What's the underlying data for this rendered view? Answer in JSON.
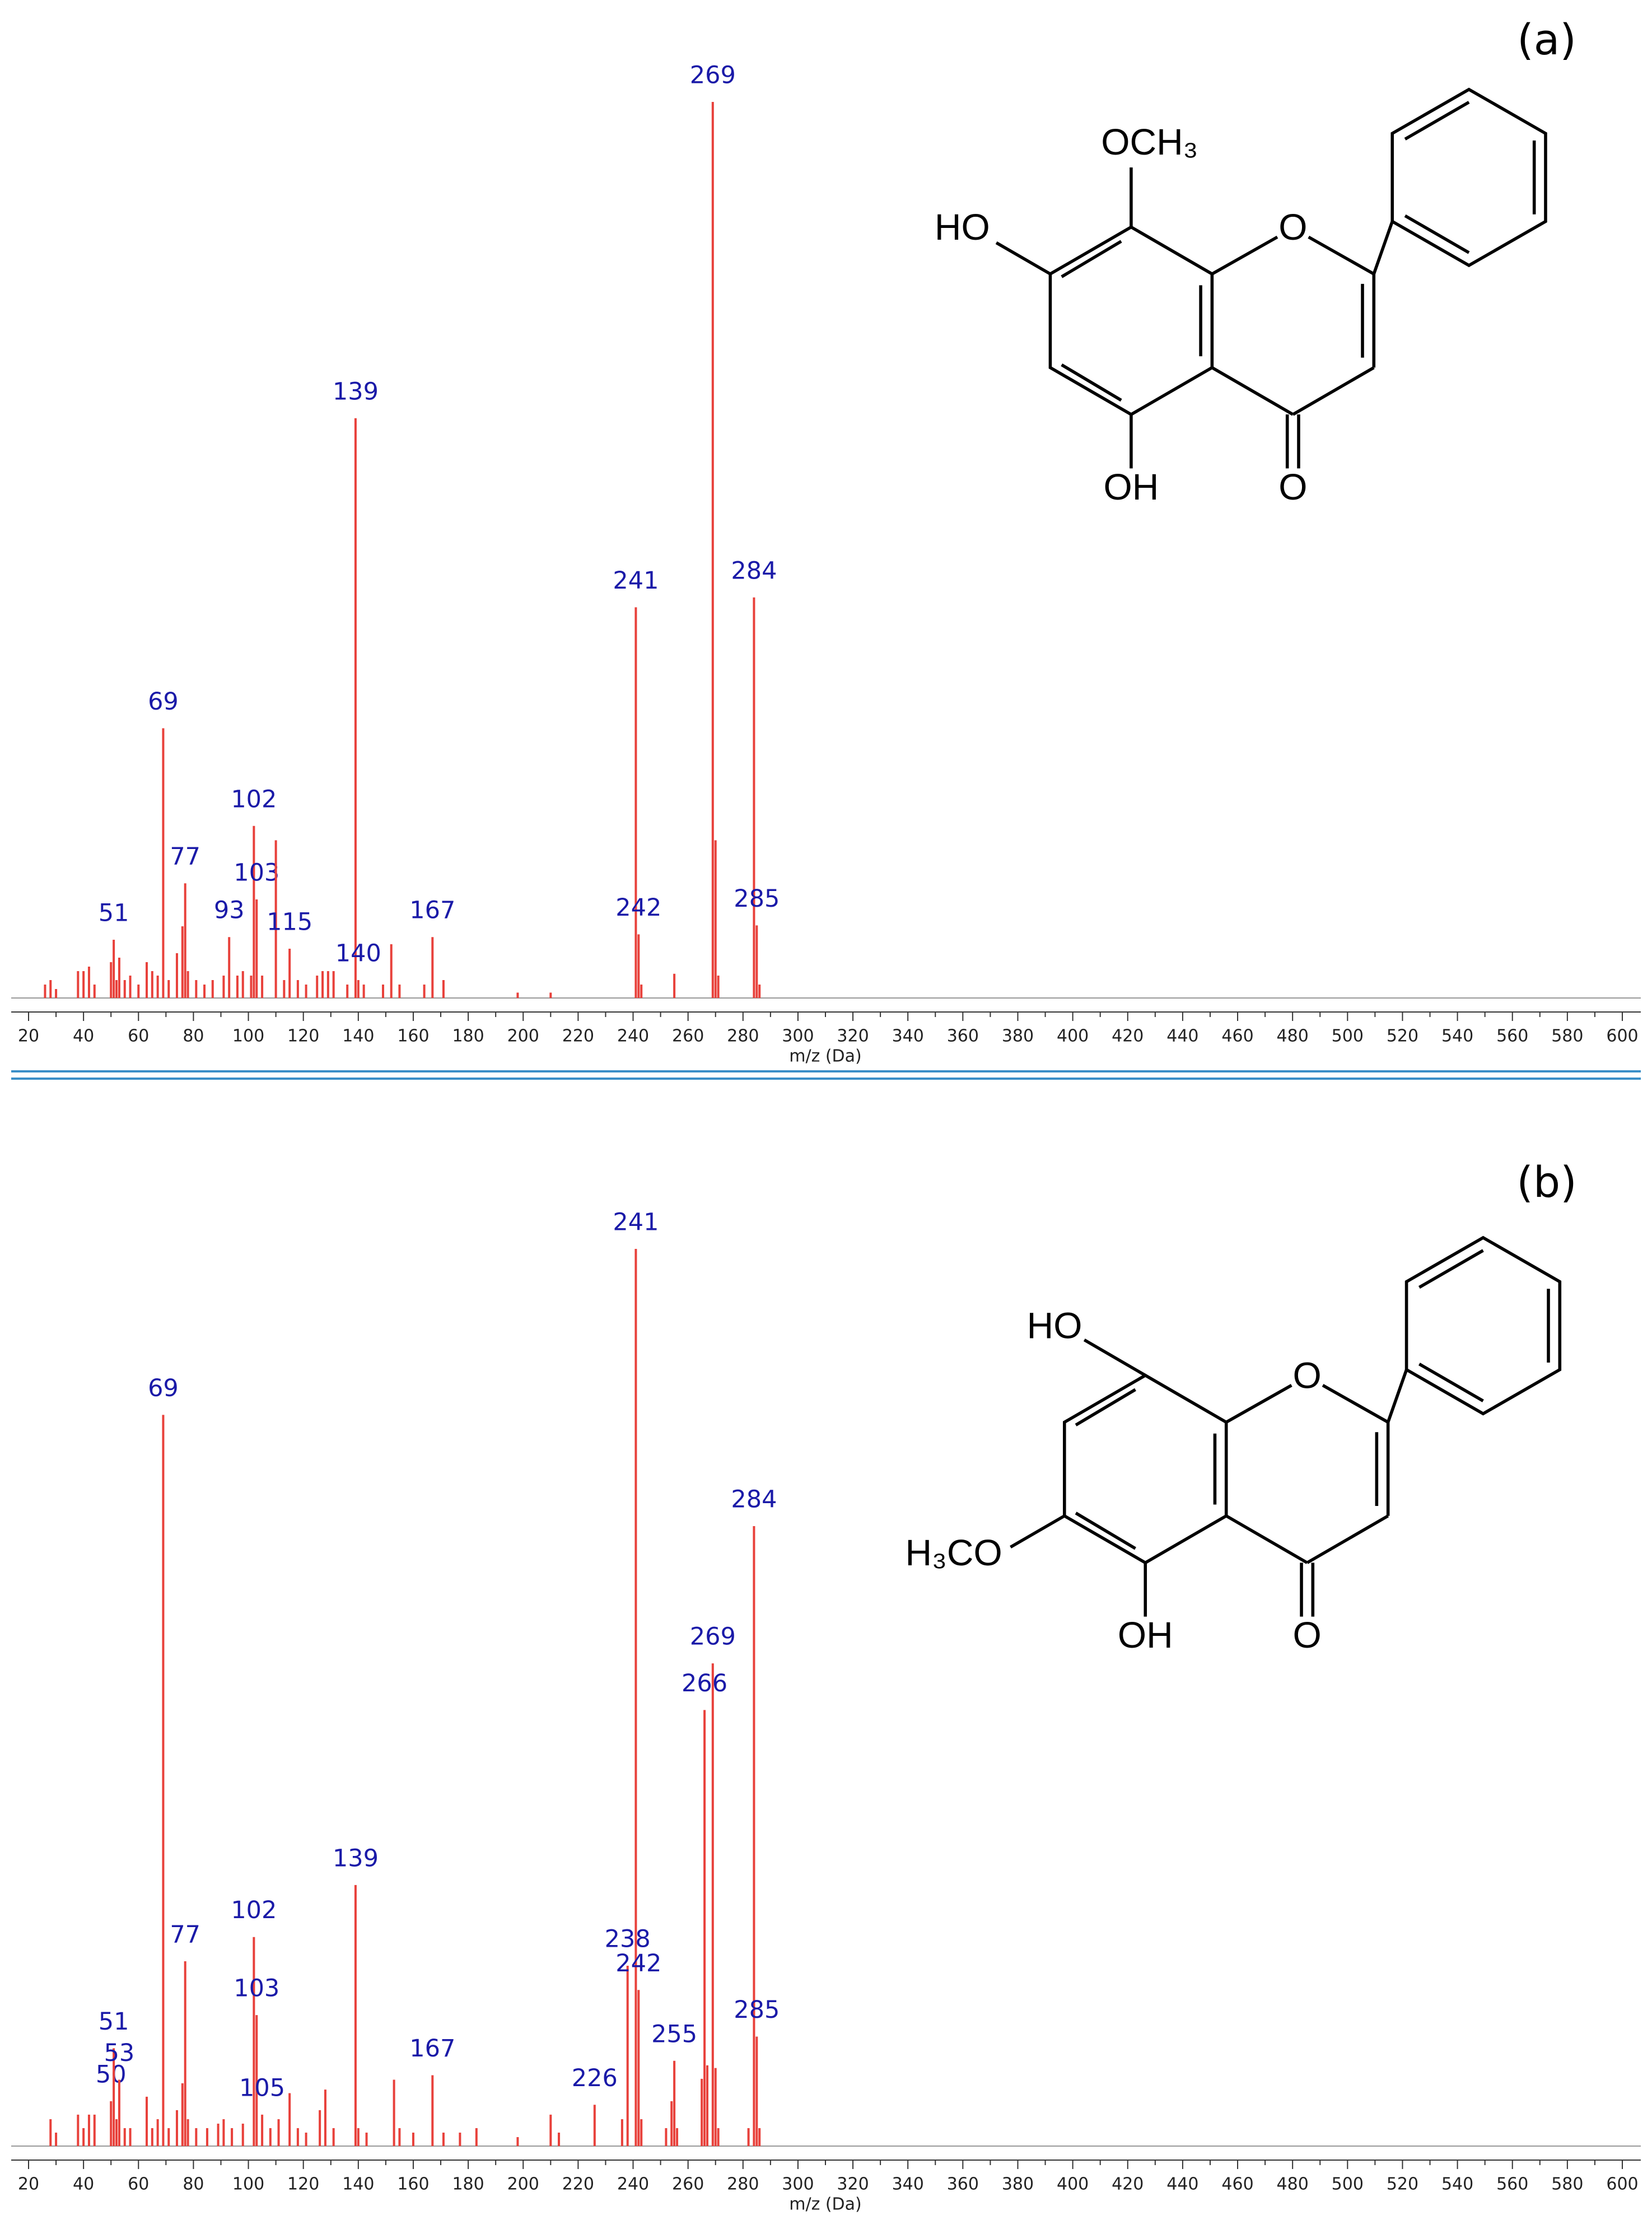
{
  "chart_data": [
    {
      "type": "stem",
      "panel_label": "(a)",
      "xlabel": "m/z (Da)",
      "color": "#e8413b",
      "label_color": "#1a1aa8",
      "structure": [
        "OCH₃",
        "HO",
        "O",
        "OH",
        "O"
      ],
      "xlim": [
        20,
        600
      ],
      "ylim": [
        0,
        100
      ],
      "xticks": [
        20,
        40,
        60,
        80,
        100,
        120,
        140,
        160,
        180,
        200,
        220,
        240,
        260,
        280,
        300,
        320,
        340,
        360,
        380,
        400,
        420,
        440,
        460,
        480,
        500,
        520,
        540,
        560,
        580,
        600
      ],
      "x": [
        26,
        28,
        30,
        38,
        40,
        42,
        44,
        50,
        51,
        52,
        53,
        55,
        57,
        60,
        63,
        65,
        67,
        69,
        71,
        74,
        76,
        77,
        78,
        81,
        84,
        87,
        91,
        93,
        96,
        98,
        101,
        102,
        103,
        105,
        110,
        113,
        115,
        118,
        121,
        125,
        127,
        129,
        131,
        136,
        139,
        140,
        142,
        149,
        152,
        155,
        164,
        167,
        171,
        198,
        210,
        241,
        242,
        243,
        255,
        269,
        270,
        271,
        284,
        285,
        286
      ],
      "values": [
        1.5,
        2,
        1,
        3,
        3,
        3.5,
        1.5,
        4,
        6.5,
        2,
        4.5,
        2,
        2.5,
        1.5,
        4,
        3,
        2.5,
        30.1,
        2,
        5,
        8,
        12.8,
        3,
        2,
        1.5,
        2,
        2.5,
        6.8,
        2.5,
        3,
        2.5,
        19.2,
        11,
        2.5,
        17.6,
        2,
        5.5,
        2,
        1.5,
        2.5,
        3,
        3,
        3,
        1.5,
        64.7,
        2,
        1.5,
        1.5,
        6,
        1.5,
        1.5,
        6.8,
        2,
        0.6,
        0.6,
        43.6,
        7.1,
        1.5,
        2.7,
        100,
        17.6,
        2.5,
        44.7,
        8.1,
        1.5
      ],
      "labels": [
        null,
        null,
        null,
        null,
        null,
        null,
        null,
        null,
        "51",
        null,
        null,
        null,
        null,
        null,
        null,
        null,
        null,
        "69",
        null,
        null,
        null,
        "77",
        null,
        null,
        null,
        null,
        null,
        "93",
        null,
        null,
        null,
        "102",
        "103",
        null,
        null,
        null,
        "115",
        null,
        null,
        null,
        null,
        null,
        null,
        null,
        "139",
        "140",
        null,
        null,
        null,
        null,
        null,
        "167",
        null,
        null,
        null,
        "241",
        "242",
        null,
        null,
        "269",
        null,
        null,
        "284",
        "285",
        null
      ]
    },
    {
      "type": "stem",
      "panel_label": "(b)",
      "xlabel": "m/z (Da)",
      "color": "#e8413b",
      "label_color": "#1a1aa8",
      "structure": [
        "HO",
        "O",
        "H₃CO",
        "OH",
        "O"
      ],
      "xlim": [
        20,
        600
      ],
      "ylim": [
        0,
        100
      ],
      "xticks": [
        20,
        40,
        60,
        80,
        100,
        120,
        140,
        160,
        180,
        200,
        220,
        240,
        260,
        280,
        300,
        320,
        340,
        360,
        380,
        400,
        420,
        440,
        460,
        480,
        500,
        520,
        540,
        560,
        580,
        600
      ],
      "x": [
        28,
        30,
        38,
        40,
        42,
        44,
        50,
        51,
        52,
        53,
        55,
        57,
        63,
        65,
        67,
        69,
        71,
        74,
        76,
        77,
        78,
        81,
        85,
        89,
        91,
        94,
        98,
        102,
        103,
        105,
        108,
        111,
        115,
        118,
        121,
        126,
        128,
        131,
        139,
        140,
        143,
        153,
        155,
        160,
        167,
        171,
        177,
        183,
        198,
        210,
        213,
        226,
        236,
        238,
        241,
        242,
        243,
        252,
        254,
        255,
        256,
        265,
        266,
        267,
        269,
        270,
        271,
        282,
        284,
        285,
        286
      ],
      "values": [
        3,
        1.5,
        3.5,
        2,
        3.5,
        3.5,
        5,
        10.9,
        3,
        7.4,
        2,
        2,
        5.5,
        2,
        3,
        81.5,
        2,
        4,
        7,
        20.6,
        3,
        2,
        2,
        2.5,
        3,
        2,
        2.5,
        23.3,
        14.6,
        3.5,
        2,
        3,
        5.9,
        2,
        1.5,
        4,
        6.3,
        2,
        29.1,
        2,
        1.5,
        7.4,
        2,
        1.5,
        7.9,
        1.5,
        1.5,
        2,
        1,
        3.5,
        1.5,
        4.6,
        3,
        20.1,
        100,
        17.4,
        3,
        2,
        5,
        9.5,
        2,
        7.5,
        48.6,
        9,
        53.8,
        8.7,
        2,
        2,
        69.1,
        12.2,
        2
      ],
      "labels": [
        null,
        null,
        null,
        null,
        null,
        null,
        "50",
        "51",
        null,
        "53",
        null,
        null,
        null,
        null,
        null,
        "69",
        null,
        null,
        null,
        "77",
        null,
        null,
        null,
        null,
        null,
        null,
        null,
        "102",
        "103",
        "105",
        null,
        null,
        null,
        null,
        null,
        null,
        null,
        null,
        "139",
        null,
        null,
        null,
        null,
        null,
        "167",
        null,
        null,
        null,
        null,
        null,
        null,
        "226",
        null,
        "238",
        "241",
        "242",
        null,
        null,
        null,
        "255",
        null,
        null,
        "266",
        null,
        "269",
        null,
        null,
        null,
        "284",
        "285",
        null
      ]
    }
  ]
}
